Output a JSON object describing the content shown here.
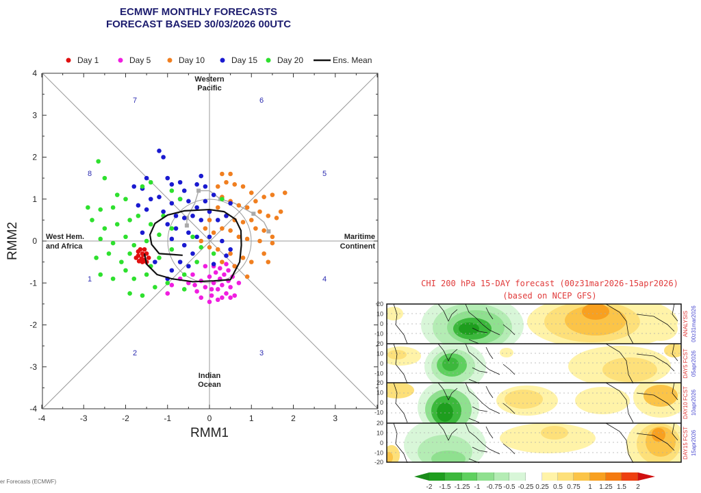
{
  "chart_data": [
    {
      "type": "scatter",
      "title": "ECMWF MONTHLY FORECASTS",
      "subtitle": "FORECAST  BASED 30/03/2026 00UTC",
      "xlabel": "RMM1",
      "ylabel": "RMM2",
      "xlim": [
        -4,
        4
      ],
      "ylim": [
        -4,
        4
      ],
      "xticks": [
        "-4",
        "-3",
        "-2",
        "-1",
        "0",
        "1",
        "2",
        "3"
      ],
      "yticks": [
        "4",
        "3",
        "2",
        "1",
        "0",
        "-1",
        "-2",
        "-3",
        "-4"
      ],
      "legend_position": "top",
      "phases": [
        "7",
        "6",
        "8",
        "5",
        "1",
        "4",
        "2",
        "3"
      ],
      "regions": {
        "top": [
          "Western",
          "Pacific"
        ],
        "bottom": [
          "Indian",
          "Ocean"
        ],
        "left": [
          "West Hem.",
          "and Africa"
        ],
        "right": [
          "Maritime",
          "Continent"
        ]
      },
      "series": [
        {
          "name": "Day 1",
          "color": "#e01010",
          "points": [
            [
              -1.6,
              -0.3
            ],
            [
              -1.7,
              -0.35
            ],
            [
              -1.55,
              -0.45
            ],
            [
              -1.65,
              -0.2
            ],
            [
              -1.5,
              -0.3
            ],
            [
              -1.75,
              -0.4
            ],
            [
              -1.6,
              -0.5
            ],
            [
              -1.45,
              -0.4
            ],
            [
              -1.7,
              -0.25
            ],
            [
              -1.55,
              -0.2
            ],
            [
              -1.62,
              -0.42
            ],
            [
              -1.5,
              -0.5
            ],
            [
              -1.68,
              -0.48
            ],
            [
              -1.58,
              -0.33
            ]
          ]
        },
        {
          "name": "Day 5",
          "color": "#f01ee0",
          "points": [
            [
              -1.0,
              -1.25
            ],
            [
              -0.9,
              -1.05
            ],
            [
              -0.7,
              -0.9
            ],
            [
              -0.5,
              -1.0
            ],
            [
              -0.4,
              -0.8
            ],
            [
              -0.3,
              -1.2
            ],
            [
              -0.2,
              -0.95
            ],
            [
              -0.1,
              -1.1
            ],
            [
              0,
              -0.85
            ],
            [
              0.05,
              -1.3
            ],
            [
              0.1,
              -1.0
            ],
            [
              0.15,
              -0.75
            ],
            [
              0.2,
              -1.15
            ],
            [
              0.25,
              -0.9
            ],
            [
              0.3,
              -1.05
            ],
            [
              0.35,
              -0.8
            ],
            [
              0.4,
              -1.25
            ],
            [
              0.45,
              -0.95
            ],
            [
              0.5,
              -1.1
            ],
            [
              0.55,
              -0.85
            ],
            [
              0.6,
              -1.3
            ],
            [
              0.6,
              -0.6
            ],
            [
              0.4,
              -0.55
            ],
            [
              0.1,
              -0.6
            ],
            [
              -0.1,
              -0.6
            ],
            [
              0.2,
              -1.4
            ],
            [
              0.0,
              -1.45
            ],
            [
              0.3,
              -1.35
            ],
            [
              -0.2,
              -1.35
            ],
            [
              0.45,
              -0.7
            ],
            [
              0.05,
              -1.15
            ],
            [
              -0.35,
              -1.05
            ],
            [
              0.7,
              -1.0
            ],
            [
              0.5,
              -1.35
            ],
            [
              0.25,
              -0.65
            ]
          ]
        },
        {
          "name": "Day 10",
          "color": "#f07f20",
          "points": [
            [
              0.3,
              1.6
            ],
            [
              0.5,
              1.6
            ],
            [
              0.4,
              1.4
            ],
            [
              0.2,
              1.3
            ],
            [
              0.6,
              1.35
            ],
            [
              0.8,
              1.3
            ],
            [
              1.0,
              1.15
            ],
            [
              1.3,
              1.05
            ],
            [
              1.5,
              1.1
            ],
            [
              1.8,
              1.15
            ],
            [
              0.3,
              1.05
            ],
            [
              0.5,
              0.95
            ],
            [
              0.7,
              0.85
            ],
            [
              0.9,
              0.8
            ],
            [
              1.1,
              0.95
            ],
            [
              1.2,
              0.7
            ],
            [
              1.4,
              0.6
            ],
            [
              1.6,
              0.55
            ],
            [
              0.2,
              0.8
            ],
            [
              0.4,
              0.6
            ],
            [
              0.6,
              0.5
            ],
            [
              0.8,
              0.45
            ],
            [
              1.0,
              0.5
            ],
            [
              1.1,
              0.3
            ],
            [
              1.3,
              0.25
            ],
            [
              0.0,
              0.5
            ],
            [
              -0.1,
              0.3
            ],
            [
              0.1,
              0.2
            ],
            [
              0.3,
              0.3
            ],
            [
              0.5,
              0.25
            ],
            [
              0.7,
              0.1
            ],
            [
              0.9,
              0.05
            ],
            [
              1.2,
              0.0
            ],
            [
              1.5,
              0.1
            ],
            [
              -0.2,
              0.0
            ],
            [
              0.0,
              -0.15
            ],
            [
              0.2,
              -0.2
            ],
            [
              0.5,
              -0.3
            ],
            [
              0.8,
              -0.4
            ],
            [
              1.0,
              -0.5
            ],
            [
              1.3,
              -0.3
            ],
            [
              1.4,
              -0.5
            ],
            [
              0.6,
              -0.6
            ],
            [
              0.3,
              -0.5
            ],
            [
              1.5,
              -0.05
            ],
            [
              0.9,
              -0.85
            ],
            [
              1.7,
              0.7
            ]
          ]
        },
        {
          "name": "Day 15",
          "color": "#1a1ad0",
          "points": [
            [
              -1.2,
              2.15
            ],
            [
              -1.1,
              2.0
            ],
            [
              -1.5,
              1.5
            ],
            [
              -1.8,
              1.3
            ],
            [
              -1.6,
              1.25
            ],
            [
              -1.0,
              1.5
            ],
            [
              -0.9,
              1.35
            ],
            [
              -0.7,
              1.4
            ],
            [
              -0.6,
              1.2
            ],
            [
              -0.3,
              1.35
            ],
            [
              -0.1,
              1.3
            ],
            [
              -1.4,
              1.0
            ],
            [
              -1.2,
              1.05
            ],
            [
              -0.9,
              0.9
            ],
            [
              -0.7,
              1.0
            ],
            [
              -0.5,
              0.95
            ],
            [
              -0.3,
              0.8
            ],
            [
              -0.1,
              0.95
            ],
            [
              0.1,
              1.1
            ],
            [
              -1.7,
              0.85
            ],
            [
              -1.5,
              0.75
            ],
            [
              -1.1,
              0.7
            ],
            [
              -0.8,
              0.6
            ],
            [
              -0.6,
              0.55
            ],
            [
              -0.4,
              0.6
            ],
            [
              -0.2,
              0.5
            ],
            [
              0.0,
              0.7
            ],
            [
              0.2,
              0.5
            ],
            [
              0.4,
              0.6
            ],
            [
              -1.0,
              0.4
            ],
            [
              -0.8,
              0.3
            ],
            [
              -0.5,
              0.2
            ],
            [
              -0.3,
              0.1
            ],
            [
              0.0,
              0.1
            ],
            [
              0.3,
              0.0
            ],
            [
              0.5,
              -0.2
            ],
            [
              -0.9,
              0.05
            ],
            [
              -0.6,
              -0.1
            ],
            [
              -0.4,
              -0.3
            ],
            [
              -0.7,
              -0.5
            ],
            [
              -0.9,
              -0.7
            ],
            [
              -1.0,
              -0.9
            ],
            [
              0.1,
              -0.55
            ],
            [
              0.4,
              -0.35
            ],
            [
              0.5,
              0.9
            ],
            [
              -0.2,
              1.55
            ],
            [
              -1.6,
              0.2
            ],
            [
              -0.5,
              -0.6
            ],
            [
              -1.3,
              -0.5
            ]
          ]
        },
        {
          "name": "Day 20",
          "color": "#2ee02e",
          "points": [
            [
              -2.65,
              1.9
            ],
            [
              -2.5,
              1.5
            ],
            [
              -2.9,
              0.8
            ],
            [
              -2.6,
              0.75
            ],
            [
              -2.3,
              0.8
            ],
            [
              -2.0,
              1.0
            ],
            [
              -1.6,
              1.3
            ],
            [
              -1.4,
              1.4
            ],
            [
              -0.9,
              1.2
            ],
            [
              -0.7,
              1.0
            ],
            [
              -2.8,
              0.5
            ],
            [
              -2.5,
              0.3
            ],
            [
              -2.2,
              0.4
            ],
            [
              -1.9,
              0.5
            ],
            [
              -1.7,
              0.6
            ],
            [
              -1.4,
              0.4
            ],
            [
              -1.1,
              0.6
            ],
            [
              -2.6,
              0.05
            ],
            [
              -2.3,
              -0.05
            ],
            [
              -2.0,
              0.1
            ],
            [
              -1.8,
              -0.1
            ],
            [
              -1.5,
              0.0
            ],
            [
              -1.2,
              0.15
            ],
            [
              -0.9,
              0.3
            ],
            [
              -2.7,
              -0.4
            ],
            [
              -2.4,
              -0.3
            ],
            [
              -2.1,
              -0.5
            ],
            [
              -1.9,
              -0.3
            ],
            [
              -1.4,
              -0.6
            ],
            [
              -1.2,
              -0.4
            ],
            [
              -0.9,
              -0.2
            ],
            [
              -2.6,
              -0.8
            ],
            [
              -2.3,
              -0.9
            ],
            [
              -2.0,
              -0.7
            ],
            [
              -1.8,
              -0.9
            ],
            [
              -1.5,
              -0.8
            ],
            [
              -1.3,
              -1.1
            ],
            [
              -1.0,
              -1.0
            ],
            [
              -0.6,
              -0.8
            ],
            [
              -0.2,
              -0.15
            ],
            [
              -1.9,
              -1.25
            ],
            [
              -1.6,
              -1.3
            ],
            [
              -0.4,
              0.1
            ],
            [
              -0.3,
              -0.5
            ],
            [
              0.1,
              -0.3
            ],
            [
              0.3,
              1.0
            ],
            [
              -0.6,
              -1.15
            ],
            [
              -2.2,
              1.1
            ]
          ]
        }
      ],
      "ens_mean": {
        "name": "Ens. Mean",
        "color": "#111111",
        "points": [
          [
            -1.55,
            -0.3
          ],
          [
            -1.5,
            -0.55
          ],
          [
            -1.25,
            -0.8
          ],
          [
            -0.9,
            -0.9
          ],
          [
            -0.4,
            -0.97
          ],
          [
            0.1,
            -0.95
          ],
          [
            0.5,
            -0.92
          ],
          [
            0.72,
            -0.5
          ],
          [
            0.76,
            -0.1
          ],
          [
            0.75,
            0.25
          ],
          [
            0.62,
            0.52
          ],
          [
            0.35,
            0.7
          ],
          [
            0.0,
            0.75
          ],
          [
            -0.6,
            0.72
          ],
          [
            -1.0,
            0.62
          ],
          [
            -1.3,
            0.42
          ],
          [
            -1.42,
            0.15
          ],
          [
            -1.38,
            -0.08
          ],
          [
            -1.2,
            -0.3
          ],
          [
            -0.9,
            -0.32
          ],
          [
            -0.64,
            -0.34
          ]
        ]
      },
      "analysis_path": {
        "color": "#aaaaaa",
        "points": [
          [
            -0.54,
            0.37
          ],
          [
            -0.54,
            0.55
          ],
          [
            -0.35,
            0.9
          ],
          [
            -0.26,
            1.2
          ],
          [
            0.0,
            1.2
          ],
          [
            0.26,
            1.0
          ],
          [
            0.6,
            0.9
          ],
          [
            1.05,
            0.65
          ],
          [
            1.3,
            0.45
          ],
          [
            1.41,
            0.23
          ]
        ],
        "markers": [
          [
            -0.54,
            0.37
          ],
          [
            -0.54,
            0.55
          ],
          [
            -0.26,
            1.2
          ],
          [
            0.26,
            1.0
          ],
          [
            1.05,
            0.65
          ],
          [
            1.41,
            0.23
          ]
        ]
      }
    },
    {
      "type": "heatmap",
      "title": "CHI 200 hPa 15-DAY forecast (00z31mar2026-15apr2026)",
      "subtitle": "(based on NCEP GFS)",
      "lat_ticks": [
        "20",
        "10",
        "0",
        "-10"
      ],
      "lat_bottom": "-20",
      "panels": [
        {
          "label": "ANALYSIS",
          "date": "00z31mar2026"
        },
        {
          "label": "DAY5 FCST",
          "date": "05apr2026"
        },
        {
          "label": "DAY10 FCST",
          "date": "10apr2026"
        },
        {
          "label": "DAY15 FCST",
          "date": "15apr2026"
        }
      ],
      "colorbar": {
        "labels": [
          "-2",
          "-1.5",
          "-1.25",
          "-1",
          "-0.75",
          "-0.5",
          "-0.25",
          "0.25",
          "0.5",
          "0.75",
          "1",
          "1.25",
          "1.5",
          "2"
        ],
        "colors": [
          "#1a8c1a",
          "#1e9e1e",
          "#3cb83c",
          "#5fd05f",
          "#8fe08f",
          "#b4ecb4",
          "#d8f6d8",
          "#ffffff",
          "#fff3a8",
          "#fde07a",
          "#fbc448",
          "#f8a020",
          "#f47a10",
          "#ee4010",
          "#d01010"
        ]
      }
    }
  ],
  "footer": "er Forecasts (ECMWF)"
}
